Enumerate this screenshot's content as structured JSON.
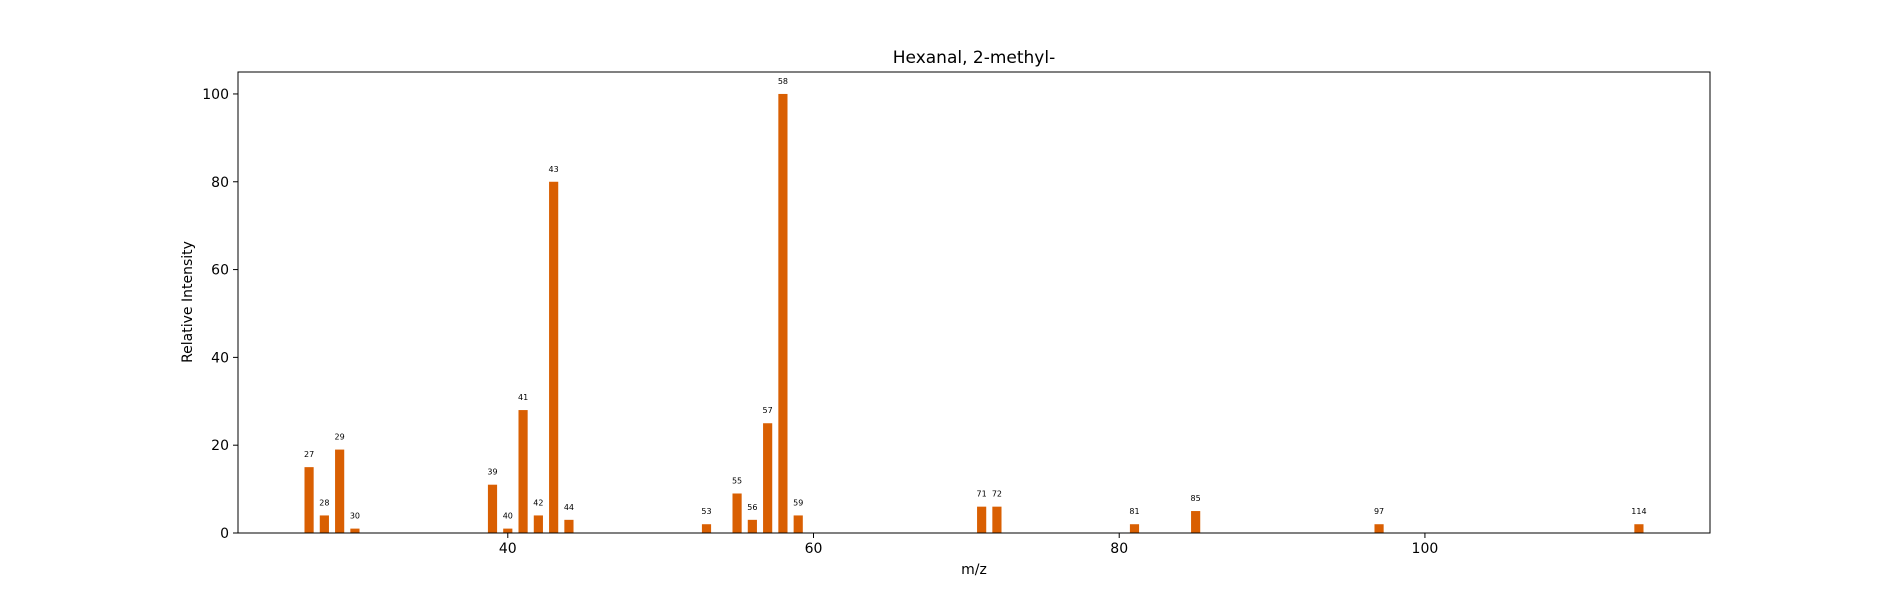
{
  "chart_data": {
    "type": "bar",
    "title": "Hexanal, 2-methyl-",
    "xlabel": "m/z",
    "ylabel": "Relative Intensity",
    "xlim": [
      22.35,
      118.65
    ],
    "ylim": [
      0,
      105
    ],
    "xticks": [
      40,
      60,
      80,
      100
    ],
    "yticks": [
      0,
      20,
      40,
      60,
      80,
      100
    ],
    "bar_color": "#d95f02",
    "bar_width": 0.6,
    "x": [
      27,
      28,
      29,
      30,
      39,
      40,
      41,
      42,
      43,
      44,
      53,
      55,
      56,
      57,
      58,
      59,
      71,
      72,
      81,
      85,
      97,
      114
    ],
    "values": [
      15,
      4,
      19,
      1,
      11,
      1,
      28,
      4,
      80,
      3,
      2,
      9,
      3,
      25,
      100,
      4,
      6,
      6,
      2,
      5,
      2,
      2
    ],
    "labels": [
      "27",
      "28",
      "29",
      "30",
      "39",
      "40",
      "41",
      "42",
      "43",
      "44",
      "53",
      "55",
      "56",
      "57",
      "58",
      "59",
      "71",
      "72",
      "81",
      "85",
      "97",
      "114"
    ]
  }
}
